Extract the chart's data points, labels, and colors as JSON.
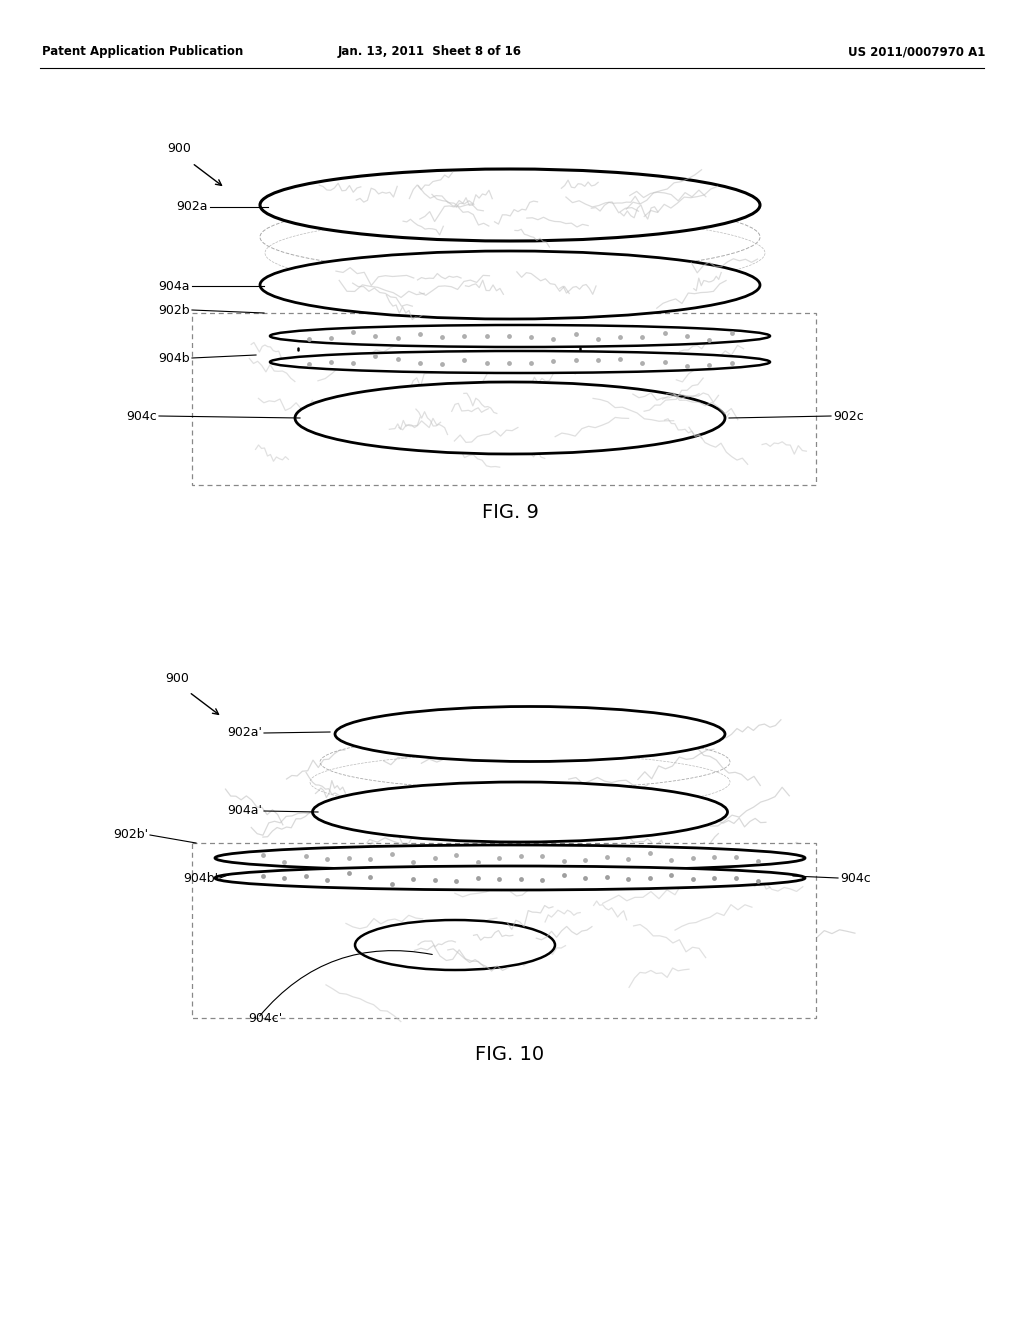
{
  "background_color": "#ffffff",
  "header_left": "Patent Application Publication",
  "header_center": "Jan. 13, 2011  Sheet 8 of 16",
  "header_right": "US 2011/0007970 A1",
  "fig9_label": "FIG. 9",
  "fig10_label": "FIG. 10",
  "line_color": "#000000",
  "gray_color": "#aaaaaa",
  "light_gray": "#cccccc",
  "dot_gray": "#999999"
}
